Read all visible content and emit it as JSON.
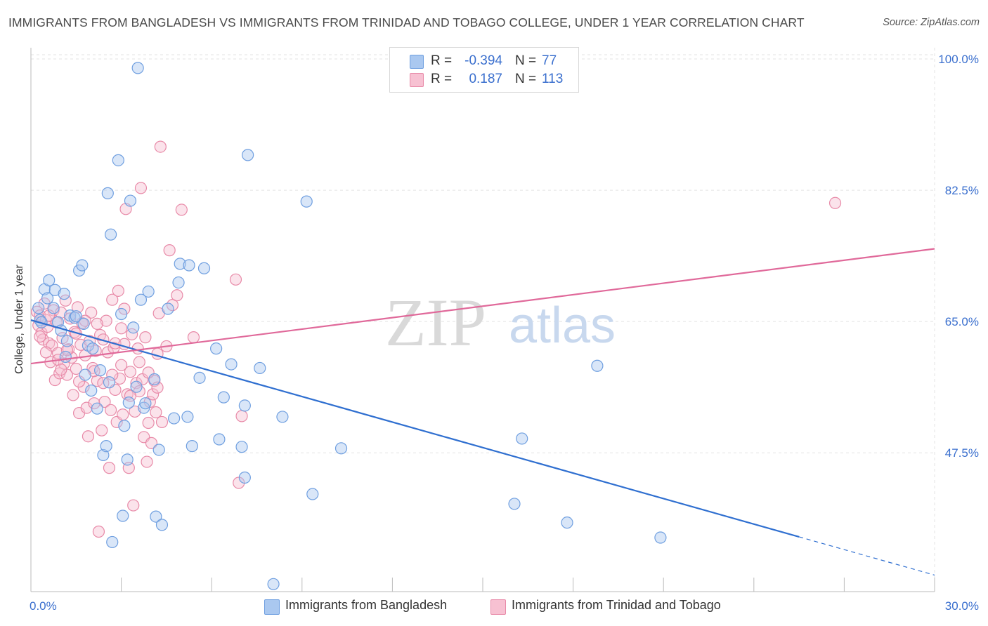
{
  "title": "IMMIGRANTS FROM BANGLADESH VS IMMIGRANTS FROM TRINIDAD AND TOBAGO COLLEGE, UNDER 1 YEAR CORRELATION CHART",
  "source": "Source: ZipAtlas.com",
  "watermark": {
    "zip": "ZIP",
    "atlas": "atlas"
  },
  "legend": {
    "rows": [
      {
        "r_label": "R =",
        "r_value": "-0.394",
        "n_label": "N =",
        "n_value": "77",
        "color": "#aac8f0",
        "border": "#6f9fe0"
      },
      {
        "r_label": "R =",
        "r_value": "0.187",
        "n_label": "N =",
        "n_value": "113",
        "color": "#f7c1d2",
        "border": "#e88aa8"
      }
    ]
  },
  "bottom_legend": [
    {
      "label": "Immigrants from Bangladesh",
      "color": "#aac8f0",
      "border": "#6f9fe0"
    },
    {
      "label": "Immigrants from Trinidad and Tobago",
      "color": "#f7c1d2",
      "border": "#e88aa8"
    }
  ],
  "chart_data": {
    "type": "scatter",
    "title": "IMMIGRANTS FROM BANGLADESH VS IMMIGRANTS FROM TRINIDAD AND TOBAGO COLLEGE, UNDER 1 YEAR CORRELATION CHART",
    "xlabel": "",
    "ylabel": "College, Under 1 year",
    "xlim": [
      0,
      30
    ],
    "ylim": [
      29,
      101.5
    ],
    "x_tick_labels": [
      {
        "value": 0,
        "label": "0.0%"
      },
      {
        "value": 30,
        "label": "30.0%"
      }
    ],
    "y_tick_labels": [
      {
        "value": 100,
        "label": "100.0%"
      },
      {
        "value": 82.5,
        "label": "82.5%"
      },
      {
        "value": 65,
        "label": "65.0%"
      },
      {
        "value": 47.5,
        "label": "47.5%"
      }
    ],
    "grid": true,
    "series": [
      {
        "name": "Immigrants from Bangladesh",
        "color": "#6f9fe0",
        "fill": "#aac8f0",
        "trend": {
          "x0": 0,
          "y0": 65.2,
          "x1": 25.5,
          "y1": 36.3,
          "dash_to_x": 30,
          "line_color": "#2f6fd0"
        },
        "points": [
          [
            0.25,
            66.8
          ],
          [
            0.3,
            65.2
          ],
          [
            0.35,
            64.9
          ],
          [
            0.45,
            69.3
          ],
          [
            0.55,
            68.1
          ],
          [
            0.6,
            70.5
          ],
          [
            0.75,
            66.8
          ],
          [
            0.8,
            69.2
          ],
          [
            0.9,
            64.9
          ],
          [
            1.0,
            63.8
          ],
          [
            1.1,
            68.7
          ],
          [
            1.15,
            60.3
          ],
          [
            1.2,
            62.4
          ],
          [
            1.3,
            65.8
          ],
          [
            1.45,
            65.5
          ],
          [
            1.5,
            65.7
          ],
          [
            1.6,
            71.8
          ],
          [
            1.7,
            72.5
          ],
          [
            1.75,
            64.7
          ],
          [
            1.8,
            57.9
          ],
          [
            1.9,
            61.8
          ],
          [
            2.0,
            55.8
          ],
          [
            2.05,
            61.4
          ],
          [
            2.2,
            53.4
          ],
          [
            2.3,
            58.5
          ],
          [
            2.4,
            47.2
          ],
          [
            2.5,
            48.4
          ],
          [
            2.55,
            82.1
          ],
          [
            2.6,
            56.9
          ],
          [
            2.65,
            76.6
          ],
          [
            2.7,
            35.6
          ],
          [
            2.9,
            86.5
          ],
          [
            3.0,
            66.0
          ],
          [
            3.05,
            39.1
          ],
          [
            3.1,
            51.1
          ],
          [
            3.2,
            46.6
          ],
          [
            3.25,
            54.2
          ],
          [
            3.3,
            81.1
          ],
          [
            3.4,
            64.2
          ],
          [
            3.5,
            56.3
          ],
          [
            3.55,
            98.8
          ],
          [
            3.65,
            67.9
          ],
          [
            3.75,
            53.5
          ],
          [
            3.8,
            54.1
          ],
          [
            3.9,
            69.0
          ],
          [
            4.1,
            57.3
          ],
          [
            4.15,
            39.0
          ],
          [
            4.25,
            47.9
          ],
          [
            4.35,
            37.9
          ],
          [
            4.55,
            66.7
          ],
          [
            4.75,
            52.1
          ],
          [
            4.9,
            70.2
          ],
          [
            4.95,
            72.7
          ],
          [
            5.25,
            72.5
          ],
          [
            5.2,
            52.3
          ],
          [
            5.35,
            48.4
          ],
          [
            5.6,
            57.5
          ],
          [
            5.75,
            72.1
          ],
          [
            6.25,
            49.3
          ],
          [
            6.15,
            61.4
          ],
          [
            6.4,
            54.9
          ],
          [
            6.65,
            59.3
          ],
          [
            7.0,
            48.3
          ],
          [
            7.1,
            53.8
          ],
          [
            7.2,
            87.2
          ],
          [
            7.1,
            44.2
          ],
          [
            7.6,
            58.8
          ],
          [
            8.05,
            30.0
          ],
          [
            8.35,
            52.3
          ],
          [
            9.15,
            81.0
          ],
          [
            9.35,
            42.0
          ],
          [
            10.3,
            48.1
          ],
          [
            16.3,
            49.4
          ],
          [
            16.05,
            40.7
          ],
          [
            17.8,
            38.2
          ],
          [
            18.8,
            59.1
          ],
          [
            20.9,
            36.2
          ]
        ]
      },
      {
        "name": "Immigrants from Trinidad and Tobago",
        "color": "#e88aa8",
        "fill": "#f7c1d2",
        "trend": {
          "x0": 0,
          "y0": 59.4,
          "x1": 30,
          "y1": 74.7,
          "line_color": "#e0699a"
        },
        "points": [
          [
            0.2,
            66.3
          ],
          [
            0.25,
            64.5
          ],
          [
            0.3,
            65.8
          ],
          [
            0.35,
            63.5
          ],
          [
            0.4,
            62.6
          ],
          [
            0.45,
            67.4
          ],
          [
            0.5,
            65.2
          ],
          [
            0.55,
            64.3
          ],
          [
            0.6,
            62.1
          ],
          [
            0.65,
            59.6
          ],
          [
            0.7,
            61.8
          ],
          [
            0.75,
            66.5
          ],
          [
            0.8,
            57.2
          ],
          [
            0.85,
            64.9
          ],
          [
            0.9,
            60.8
          ],
          [
            0.95,
            58.1
          ],
          [
            1.0,
            66.2
          ],
          [
            1.05,
            62.8
          ],
          [
            1.1,
            59.4
          ],
          [
            1.15,
            67.8
          ],
          [
            1.2,
            57.9
          ],
          [
            1.25,
            61.3
          ],
          [
            1.3,
            65.4
          ],
          [
            1.35,
            60.2
          ],
          [
            1.4,
            55.2
          ],
          [
            1.45,
            63.6
          ],
          [
            1.5,
            58.7
          ],
          [
            1.55,
            66.9
          ],
          [
            1.6,
            52.8
          ],
          [
            1.65,
            61.9
          ],
          [
            1.7,
            64.8
          ],
          [
            1.75,
            56.3
          ],
          [
            1.8,
            60.5
          ],
          [
            1.85,
            53.5
          ],
          [
            1.9,
            49.7
          ],
          [
            1.95,
            62.4
          ],
          [
            2.0,
            66.2
          ],
          [
            2.05,
            58.8
          ],
          [
            2.1,
            54.1
          ],
          [
            2.15,
            61.1
          ],
          [
            2.2,
            57.1
          ],
          [
            2.25,
            37.0
          ],
          [
            2.3,
            63.2
          ],
          [
            2.35,
            50.5
          ],
          [
            2.4,
            56.8
          ],
          [
            2.45,
            54.3
          ],
          [
            2.5,
            65.1
          ],
          [
            2.55,
            60.9
          ],
          [
            2.6,
            45.5
          ],
          [
            2.65,
            53.2
          ],
          [
            2.7,
            67.9
          ],
          [
            2.75,
            61.5
          ],
          [
            2.8,
            62.1
          ],
          [
            2.85,
            51.6
          ],
          [
            2.9,
            69.1
          ],
          [
            2.95,
            57.4
          ],
          [
            3.0,
            59.2
          ],
          [
            3.05,
            52.6
          ],
          [
            3.1,
            66.7
          ],
          [
            3.15,
            80.0
          ],
          [
            3.2,
            55.3
          ],
          [
            3.25,
            45.5
          ],
          [
            3.3,
            58.3
          ],
          [
            3.35,
            63.3
          ],
          [
            3.4,
            40.5
          ],
          [
            3.45,
            53.0
          ],
          [
            3.5,
            56.8
          ],
          [
            3.55,
            61.4
          ],
          [
            3.6,
            55.7
          ],
          [
            3.65,
            82.8
          ],
          [
            3.7,
            57.3
          ],
          [
            3.75,
            49.6
          ],
          [
            3.8,
            62.9
          ],
          [
            3.85,
            46.3
          ],
          [
            3.9,
            51.5
          ],
          [
            3.95,
            54.3
          ],
          [
            4.0,
            48.8
          ],
          [
            4.05,
            55.3
          ],
          [
            4.1,
            57.1
          ],
          [
            4.15,
            52.9
          ],
          [
            4.2,
            60.7
          ],
          [
            4.25,
            66.1
          ],
          [
            4.3,
            88.3
          ],
          [
            4.35,
            51.6
          ],
          [
            4.5,
            61.7
          ],
          [
            4.6,
            74.5
          ],
          [
            4.7,
            67.2
          ],
          [
            4.85,
            68.5
          ],
          [
            5.0,
            79.9
          ],
          [
            5.4,
            62.9
          ],
          [
            6.8,
            70.6
          ],
          [
            6.9,
            43.5
          ],
          [
            7.0,
            52.4
          ],
          [
            26.7,
            80.8
          ],
          [
            0.3,
            63.0
          ],
          [
            0.6,
            65.8
          ],
          [
            0.9,
            59.9
          ],
          [
            1.2,
            61.2
          ],
          [
            1.5,
            63.4
          ],
          [
            1.8,
            65.1
          ],
          [
            2.1,
            58.4
          ],
          [
            2.4,
            62.6
          ],
          [
            2.7,
            57.9
          ],
          [
            3.0,
            64.1
          ],
          [
            3.3,
            55.1
          ],
          [
            3.6,
            59.6
          ],
          [
            3.9,
            58.2
          ],
          [
            4.2,
            56.2
          ],
          [
            1.0,
            58.6
          ],
          [
            2.2,
            64.7
          ],
          [
            1.6,
            57.0
          ],
          [
            3.1,
            62.0
          ],
          [
            2.8,
            55.9
          ],
          [
            0.5,
            60.9
          ]
        ]
      }
    ]
  }
}
